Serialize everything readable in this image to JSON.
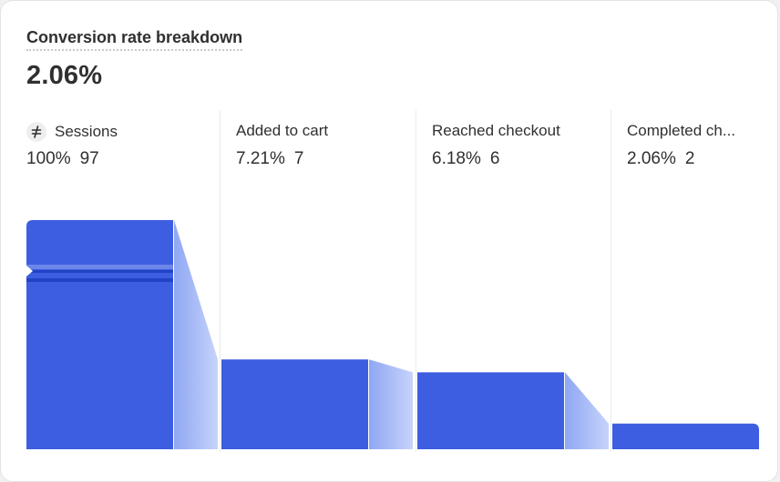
{
  "card": {
    "title": "Conversion rate breakdown",
    "value": "2.06%"
  },
  "stages": [
    {
      "name": "Sessions",
      "percent": "100%",
      "count": "97",
      "icon": "sessions-icon"
    },
    {
      "name": "Added to cart",
      "percent": "7.21%",
      "count": "7"
    },
    {
      "name": "Reached checkout",
      "percent": "6.18%",
      "count": "6"
    },
    {
      "name": "Completed ch...",
      "percent": "2.06%",
      "count": "2"
    }
  ],
  "chart_data": {
    "type": "bar",
    "categories": [
      "Sessions",
      "Added to cart",
      "Reached checkout",
      "Completed checkout"
    ],
    "values": [
      100,
      7.21,
      6.18,
      2.06
    ],
    "counts": [
      97,
      7,
      6,
      2
    ],
    "axis_break_on_first_bar": true
  },
  "colors": {
    "bar": "#3d5ee0",
    "connector_start": "#8fa7f3",
    "connector_end": "#c7d3fb",
    "break_mark": "#2143c4"
  }
}
